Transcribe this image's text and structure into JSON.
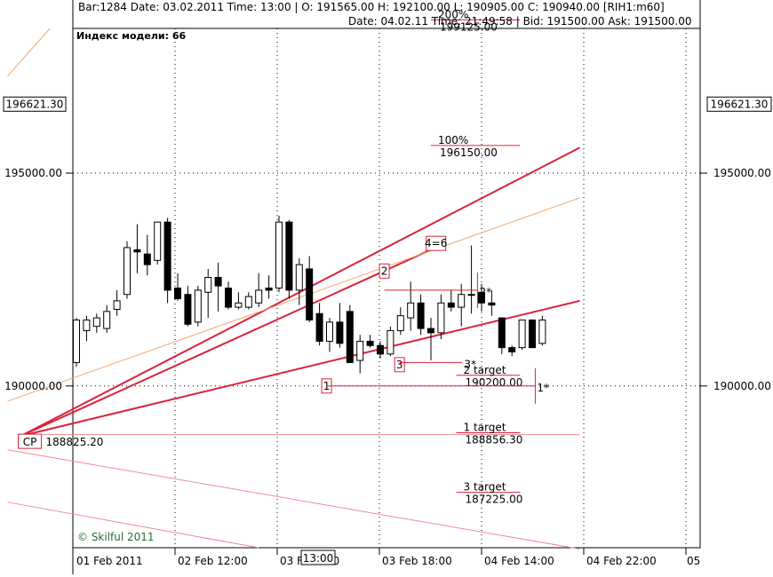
{
  "header": {
    "line1": "Bar:1284  Date: 03.02.2011  Time: 13:00  |  O:   191565.00  H:   192100.00  L:   190905.00  C:   190940.00   [RIH1:m60]",
    "line2": "Date: 04.02.11  Time: 21:49:58  |  Bid:   191500.00  Ask:   191500.00"
  },
  "model_index": "Индекс модели: 66",
  "watermark": "© Skilful 2011",
  "colors": {
    "red": "#d8233a",
    "pink": "#f08a94",
    "orange": "#f5a66a",
    "grid": "#000000",
    "candle_up": "#ffffff",
    "candle_down": "#000000"
  },
  "chart_data": {
    "type": "candlestick",
    "ylim": [
      186200,
      198400
    ],
    "y_ticks": [
      {
        "value": 195000,
        "label": "195000.00"
      },
      {
        "value": 190000,
        "label": "190000.00"
      }
    ],
    "current_price": {
      "value": 196621.3,
      "label": "196621.30"
    },
    "x_ticks": [
      "01 Feb 2011",
      "02 Feb 12:00",
      "03 F",
      "00",
      "03 Feb 18:00",
      "04 Feb 14:00",
      "04 Feb 22:00",
      "05"
    ],
    "cursor_time_label": "13:00",
    "candles": [
      {
        "o": 190550,
        "h": 191600,
        "l": 190450,
        "c": 191550
      },
      {
        "o": 191300,
        "h": 191650,
        "l": 191050,
        "c": 191550
      },
      {
        "o": 191400,
        "h": 191700,
        "l": 191250,
        "c": 191600
      },
      {
        "o": 191350,
        "h": 191900,
        "l": 191250,
        "c": 191750
      },
      {
        "o": 191800,
        "h": 192250,
        "l": 191650,
        "c": 192000
      },
      {
        "o": 192150,
        "h": 193400,
        "l": 192050,
        "c": 193250
      },
      {
        "o": 193200,
        "h": 193800,
        "l": 192650,
        "c": 193150
      },
      {
        "o": 193100,
        "h": 193550,
        "l": 192600,
        "c": 192850
      },
      {
        "o": 192950,
        "h": 193850,
        "l": 192850,
        "c": 193850
      },
      {
        "o": 193850,
        "h": 193950,
        "l": 191950,
        "c": 192250
      },
      {
        "o": 192300,
        "h": 192650,
        "l": 192000,
        "c": 192050
      },
      {
        "o": 192150,
        "h": 192350,
        "l": 191400,
        "c": 191450
      },
      {
        "o": 191500,
        "h": 192350,
        "l": 191400,
        "c": 192250
      },
      {
        "o": 192200,
        "h": 192750,
        "l": 191600,
        "c": 192550
      },
      {
        "o": 192550,
        "h": 192900,
        "l": 191750,
        "c": 192350
      },
      {
        "o": 192300,
        "h": 192450,
        "l": 191800,
        "c": 191850
      },
      {
        "o": 191850,
        "h": 192200,
        "l": 191800,
        "c": 191950
      },
      {
        "o": 191850,
        "h": 192200,
        "l": 191800,
        "c": 192100
      },
      {
        "o": 191950,
        "h": 192650,
        "l": 191850,
        "c": 192250
      },
      {
        "o": 192300,
        "h": 192600,
        "l": 192050,
        "c": 192250
      },
      {
        "o": 192300,
        "h": 194000,
        "l": 192200,
        "c": 193850
      },
      {
        "o": 193850,
        "h": 193900,
        "l": 192050,
        "c": 192250
      },
      {
        "o": 192250,
        "h": 193000,
        "l": 191900,
        "c": 192850
      },
      {
        "o": 192750,
        "h": 193050,
        "l": 191500,
        "c": 191550
      },
      {
        "o": 191700,
        "h": 191950,
        "l": 190950,
        "c": 191050
      },
      {
        "o": 191050,
        "h": 191600,
        "l": 190800,
        "c": 191500
      },
      {
        "o": 191500,
        "h": 191950,
        "l": 190900,
        "c": 191000
      },
      {
        "o": 191750,
        "h": 191900,
        "l": 190650,
        "c": 190550
      },
      {
        "o": 190600,
        "h": 191200,
        "l": 190300,
        "c": 191050
      },
      {
        "o": 191050,
        "h": 191200,
        "l": 190900,
        "c": 190950
      },
      {
        "o": 190950,
        "h": 191050,
        "l": 190650,
        "c": 190750
      },
      {
        "o": 190750,
        "h": 191400,
        "l": 190700,
        "c": 191300
      },
      {
        "o": 191300,
        "h": 191850,
        "l": 191200,
        "c": 191650
      },
      {
        "o": 191600,
        "h": 192450,
        "l": 191300,
        "c": 191950
      },
      {
        "o": 191950,
        "h": 192150,
        "l": 191200,
        "c": 191350
      },
      {
        "o": 191350,
        "h": 191600,
        "l": 190600,
        "c": 191250
      },
      {
        "o": 191250,
        "h": 192150,
        "l": 191100,
        "c": 191950
      },
      {
        "o": 191950,
        "h": 192250,
        "l": 191750,
        "c": 191850
      },
      {
        "o": 191850,
        "h": 192400,
        "l": 191400,
        "c": 192150
      },
      {
        "o": 192150,
        "h": 193300,
        "l": 191700,
        "c": 192150
      },
      {
        "o": 192200,
        "h": 192400,
        "l": 191750,
        "c": 191950
      },
      {
        "o": 191950,
        "h": 192250,
        "l": 191650,
        "c": 191900
      },
      {
        "o": 191600,
        "h": 191600,
        "l": 190750,
        "c": 190900
      },
      {
        "o": 190900,
        "h": 190950,
        "l": 190700,
        "c": 190800
      },
      {
        "o": 190900,
        "h": 191550,
        "l": 190850,
        "c": 191550
      },
      {
        "o": 191550,
        "h": 191550,
        "l": 190950,
        "c": 190900
      },
      {
        "o": 191000,
        "h": 191650,
        "l": 190950,
        "c": 191550
      }
    ],
    "lines": [
      {
        "kind": "trend",
        "color": "red",
        "p1": {
          "bar": -5.48,
          "y": 188825.2
        },
        "p2": {
          "bar": 49.7,
          "y": 195600
        }
      },
      {
        "kind": "trend",
        "color": "red",
        "p1": {
          "bar": -5.48,
          "y": 188825.2
        },
        "p2": {
          "bar": 49.7,
          "y": 192000
        }
      },
      {
        "kind": "trend",
        "color": "red",
        "p1": {
          "bar": -5.48,
          "y": 188825.2
        },
        "p2": {
          "bar": 35,
          "y": 193200
        }
      },
      {
        "kind": "trend",
        "color": "orange",
        "p1": {
          "bar": -6.8,
          "y": 189640
        },
        "p2": {
          "bar": 49.7,
          "y": 194420
        }
      },
      {
        "kind": "trend",
        "color": "orange",
        "p1": {
          "bar": -6.8,
          "y": 197280
        },
        "p2": {
          "bar": -2.6,
          "y": 198400
        }
      },
      {
        "kind": "trend",
        "color": "pink",
        "p1": {
          "bar": -6.8,
          "y": 188500
        },
        "p2": {
          "bar": 49.7,
          "y": 186170
        }
      },
      {
        "kind": "trend",
        "color": "pink",
        "p1": {
          "bar": -6.8,
          "y": 187270
        },
        "p2": {
          "bar": 18,
          "y": 186200
        }
      },
      {
        "kind": "hline",
        "color": "pink",
        "y": 188856.3,
        "bar_from": -5.48,
        "bar_to": 49.7
      }
    ],
    "targets": [
      {
        "pct": "200%",
        "value": "199125.00",
        "y": 198600,
        "bar_from": 35,
        "bar_to": 43.8
      },
      {
        "pct": "100%",
        "value": "196150.00",
        "y": 195650,
        "bar_from": 35,
        "bar_to": 43.8
      },
      {
        "pct": "2 target",
        "value": "190200.00",
        "y": 190250,
        "bar_from": 37.5,
        "bar_to": 43.8
      },
      {
        "pct": "1 target",
        "value": "188856.30",
        "y": 188900,
        "bar_from": 37.5,
        "bar_to": 43.8
      },
      {
        "pct": "3 target",
        "value": "187225.00",
        "y": 187500,
        "bar_from": 37.5,
        "bar_to": 43.8
      }
    ],
    "points": [
      {
        "label": "CP",
        "bar": -5.48,
        "y": 188825.2,
        "value": "188825.20"
      },
      {
        "label": "1",
        "bar": 24.7,
        "y": 190000
      },
      {
        "label": "2",
        "bar": 30.4,
        "y": 192700
      },
      {
        "label": "3",
        "bar": 31.9,
        "y": 190500
      },
      {
        "label": "4=6",
        "bar": 35.5,
        "y": 193350
      },
      {
        "label": "3*",
        "bar": 38.1,
        "y": 190550
      },
      {
        "label": "2*",
        "bar": 39.6,
        "y": 192250
      },
      {
        "label": "1*",
        "bar": 45.3,
        "y": 190000
      }
    ]
  }
}
